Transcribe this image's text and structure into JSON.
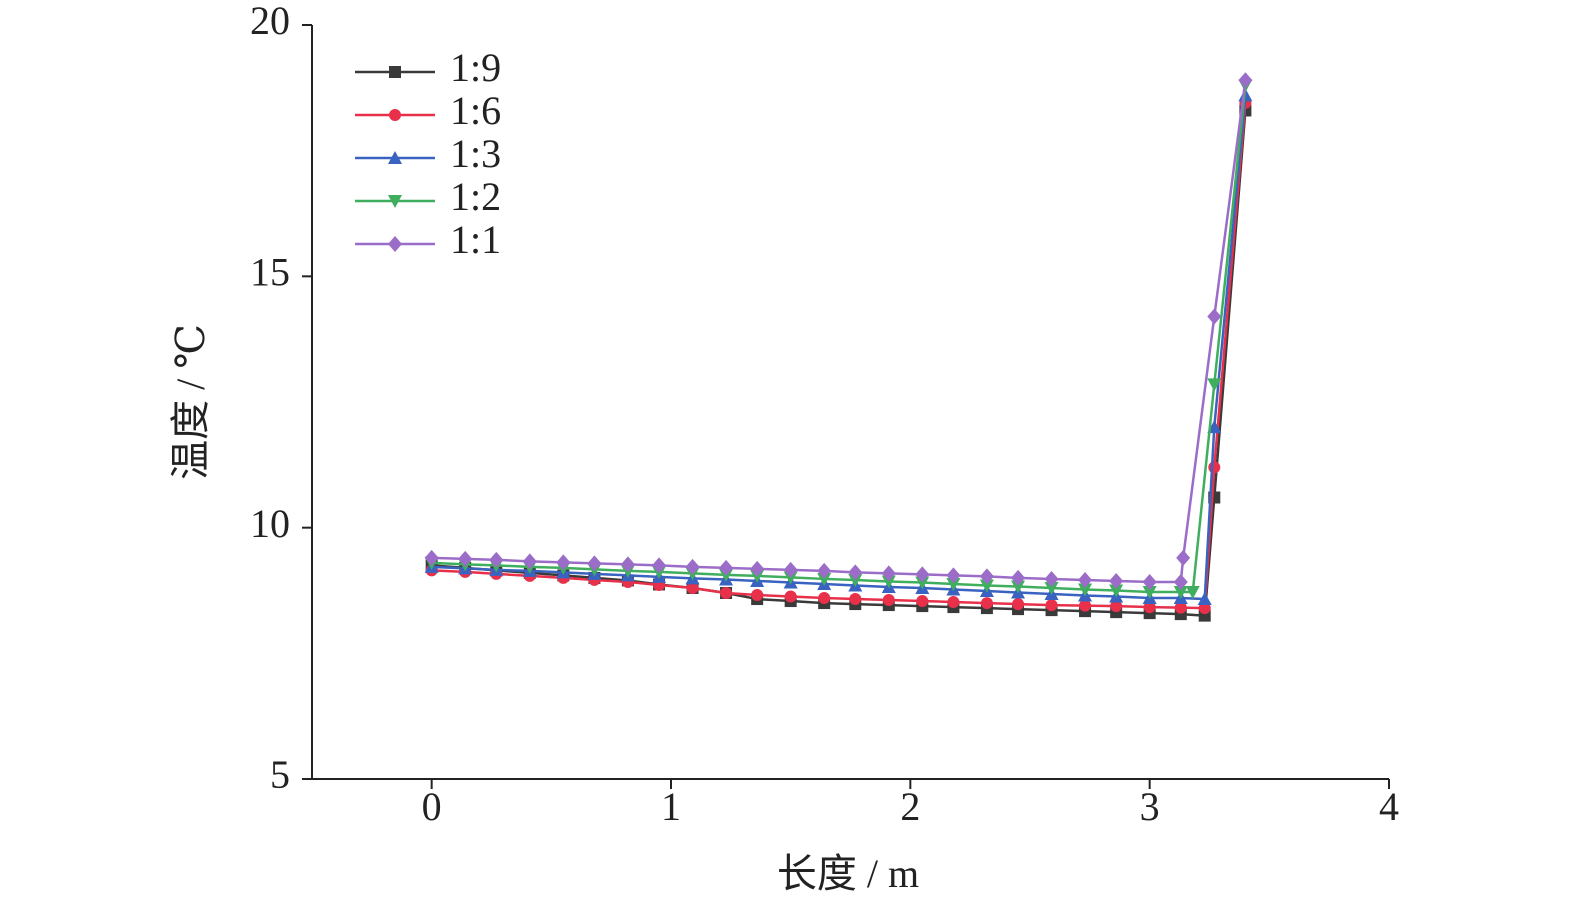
{
  "chart_data": {
    "type": "line",
    "xlabel": "长度 / m",
    "ylabel": "温度 / ℃",
    "xlim": [
      -0.5,
      4
    ],
    "xticks": [
      0,
      1,
      2,
      3,
      4
    ],
    "ylim": [
      5,
      20
    ],
    "yticks": [
      5,
      10,
      15,
      20
    ],
    "legend": "upper left",
    "series": [
      {
        "name": "1:9",
        "color": "#3a3a3a",
        "marker": "square",
        "x": [
          0,
          0.14,
          0.27,
          0.41,
          0.55,
          0.68,
          0.82,
          0.95,
          1.09,
          1.23,
          1.36,
          1.5,
          1.64,
          1.77,
          1.91,
          2.05,
          2.18,
          2.32,
          2.45,
          2.59,
          2.73,
          2.86,
          3.0,
          3.13,
          3.23,
          3.27,
          3.4
        ],
        "values": [
          9.25,
          9.2,
          9.15,
          9.1,
          9.05,
          9.0,
          8.95,
          8.87,
          8.8,
          8.7,
          8.58,
          8.54,
          8.5,
          8.48,
          8.46,
          8.44,
          8.42,
          8.4,
          8.38,
          8.36,
          8.34,
          8.32,
          8.3,
          8.28,
          8.25,
          10.6,
          18.3
        ]
      },
      {
        "name": "1:6",
        "color": "#e8304a",
        "marker": "circle",
        "x": [
          0,
          0.14,
          0.27,
          0.41,
          0.55,
          0.68,
          0.82,
          0.95,
          1.09,
          1.23,
          1.36,
          1.5,
          1.64,
          1.77,
          1.91,
          2.05,
          2.18,
          2.32,
          2.45,
          2.59,
          2.73,
          2.86,
          3.0,
          3.13,
          3.23,
          3.27,
          3.4
        ],
        "values": [
          9.15,
          9.12,
          9.08,
          9.04,
          9.0,
          8.96,
          8.92,
          8.86,
          8.8,
          8.7,
          8.66,
          8.63,
          8.6,
          8.58,
          8.56,
          8.54,
          8.52,
          8.5,
          8.48,
          8.46,
          8.45,
          8.44,
          8.42,
          8.41,
          8.4,
          11.2,
          18.45
        ]
      },
      {
        "name": "1:3",
        "color": "#3a62c0",
        "marker": "triangle-up",
        "x": [
          0,
          0.14,
          0.27,
          0.41,
          0.55,
          0.68,
          0.82,
          0.95,
          1.09,
          1.23,
          1.36,
          1.5,
          1.64,
          1.77,
          1.91,
          2.05,
          2.18,
          2.32,
          2.45,
          2.59,
          2.73,
          2.86,
          3.0,
          3.13,
          3.23,
          3.27,
          3.4
        ],
        "values": [
          9.22,
          9.19,
          9.16,
          9.14,
          9.11,
          9.08,
          9.05,
          9.02,
          8.99,
          8.97,
          8.94,
          8.91,
          8.88,
          8.85,
          8.82,
          8.8,
          8.77,
          8.74,
          8.71,
          8.68,
          8.65,
          8.63,
          8.6,
          8.6,
          8.58,
          12.0,
          18.6
        ]
      },
      {
        "name": "1:2",
        "color": "#3fae5e",
        "marker": "triangle-down",
        "x": [
          0,
          0.14,
          0.27,
          0.41,
          0.55,
          0.68,
          0.82,
          0.95,
          1.09,
          1.23,
          1.36,
          1.5,
          1.64,
          1.77,
          1.91,
          2.05,
          2.18,
          2.32,
          2.45,
          2.59,
          2.73,
          2.86,
          3.0,
          3.13,
          3.18,
          3.27,
          3.4
        ],
        "values": [
          9.3,
          9.27,
          9.25,
          9.22,
          9.2,
          9.17,
          9.14,
          9.12,
          9.09,
          9.06,
          9.04,
          9.01,
          8.98,
          8.96,
          8.93,
          8.91,
          8.88,
          8.85,
          8.83,
          8.8,
          8.77,
          8.75,
          8.72,
          8.72,
          8.72,
          12.85,
          18.8
        ]
      },
      {
        "name": "1:1",
        "color": "#9b6cc8",
        "marker": "diamond",
        "x": [
          0,
          0.14,
          0.27,
          0.41,
          0.55,
          0.68,
          0.82,
          0.95,
          1.09,
          1.23,
          1.36,
          1.5,
          1.64,
          1.77,
          1.91,
          2.05,
          2.18,
          2.32,
          2.45,
          2.59,
          2.73,
          2.86,
          3.0,
          3.13,
          3.14,
          3.27,
          3.4
        ],
        "values": [
          9.4,
          9.38,
          9.36,
          9.33,
          9.31,
          9.29,
          9.27,
          9.25,
          9.22,
          9.2,
          9.18,
          9.16,
          9.14,
          9.11,
          9.09,
          9.07,
          9.05,
          9.03,
          9.0,
          8.98,
          8.96,
          8.94,
          8.92,
          8.92,
          9.4,
          14.2,
          18.9
        ]
      }
    ]
  }
}
